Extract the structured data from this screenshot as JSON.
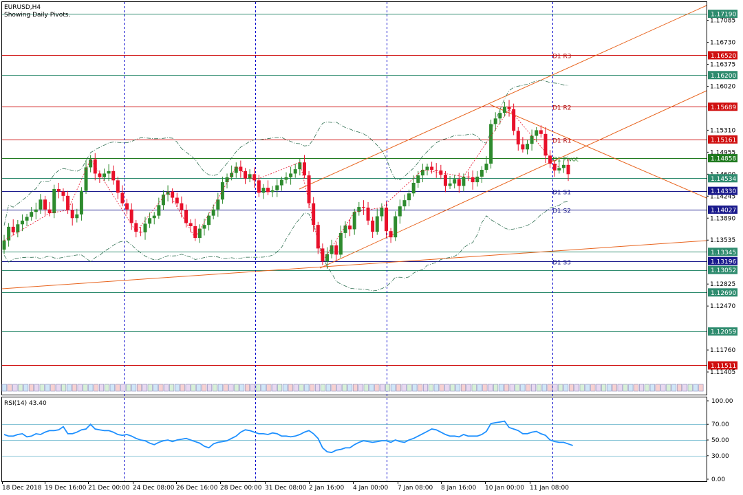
{
  "header": {
    "symbol": "EURUSD,H4",
    "subtitle": "Showing Daily Pivots."
  },
  "rsi": {
    "label": "RSI(14) 43.40"
  },
  "colors": {
    "bull": "#2e8b2e",
    "bear": "#e8102a",
    "rsi": "#1e90ff",
    "trend": "#e8641e",
    "session": "#0000cc",
    "pivot_red": "#d01010",
    "pivot_teal": "#2e8b6e",
    "pivot_navy": "#1a1a8c",
    "pivot_green": "#1f7a1f"
  },
  "chart_data": [
    {
      "type": "candlestick",
      "title": "EURUSD,H4",
      "subtitle": "Showing Daily Pivots.",
      "y_axis_ticks": [
        "1.17085",
        "1.16730",
        "1.16375",
        "1.16020",
        "1.15310",
        "1.14955",
        "1.14600",
        "1.14245",
        "1.13890",
        "1.13535",
        "1.12825",
        "1.12470",
        "1.11760",
        "1.11405"
      ],
      "ylim": [
        1.1125,
        1.1738
      ],
      "x_axis_ticks": [
        "18 Dec 2018",
        "19 Dec 16:00",
        "21 Dec 00:00",
        "24 Dec 08:00",
        "26 Dec 16:00",
        "28 Dec 00:00",
        "31 Dec 08:00",
        "2 Jan 16:00",
        "4 Jan 00:00",
        "7 Jan 08:00",
        "8 Jan 16:00",
        "10 Jan 00:00",
        "11 Jan 08:00"
      ],
      "price_levels": [
        {
          "value": "1.17190",
          "color": "teal"
        },
        {
          "value": "1.16520",
          "color": "red",
          "label": "D1 R3"
        },
        {
          "value": "1.16200",
          "color": "teal"
        },
        {
          "value": "1.15689",
          "color": "red",
          "label": "D1 R2"
        },
        {
          "value": "1.15161",
          "color": "red",
          "label": "D1 R1"
        },
        {
          "value": "1.14858",
          "color": "green",
          "label": "D1 Pivot"
        },
        {
          "value": "1.14534",
          "color": "teal"
        },
        {
          "value": "1.14330",
          "color": "navy",
          "label": "D1 S1"
        },
        {
          "value": "1.14027",
          "color": "navy",
          "label": "D1 S2"
        },
        {
          "value": "1.13345",
          "color": "teal"
        },
        {
          "value": "1.13196",
          "color": "navy",
          "label": "D1 S3"
        },
        {
          "value": "1.13052",
          "color": "teal"
        },
        {
          "value": "1.12690",
          "color": "teal"
        },
        {
          "value": "1.12059",
          "color": "teal"
        },
        {
          "value": "1.11511",
          "color": "red"
        }
      ],
      "closes": [
        1.1353,
        1.1375,
        1.1366,
        1.1379,
        1.1385,
        1.1391,
        1.1399,
        1.1403,
        1.1419,
        1.1403,
        1.1397,
        1.1436,
        1.1432,
        1.1425,
        1.1402,
        1.1389,
        1.1395,
        1.1433,
        1.1471,
        1.1484,
        1.1461,
        1.1455,
        1.1461,
        1.1465,
        1.145,
        1.143,
        1.1413,
        1.1403,
        1.1381,
        1.1367,
        1.1366,
        1.138,
        1.1389,
        1.1393,
        1.141,
        1.1427,
        1.1432,
        1.1422,
        1.1413,
        1.1402,
        1.1381,
        1.1376,
        1.1357,
        1.1372,
        1.1378,
        1.1393,
        1.1403,
        1.1419,
        1.1447,
        1.1455,
        1.1462,
        1.1472,
        1.1465,
        1.1453,
        1.146,
        1.145,
        1.143,
        1.1438,
        1.1431,
        1.1434,
        1.1442,
        1.1451,
        1.1455,
        1.1461,
        1.1468,
        1.1479,
        1.1458,
        1.1413,
        1.1378,
        1.134,
        1.1319,
        1.1331,
        1.1345,
        1.133,
        1.1365,
        1.1377,
        1.1371,
        1.1399,
        1.1407,
        1.1406,
        1.1385,
        1.1367,
        1.1392,
        1.1406,
        1.1368,
        1.1358,
        1.1392,
        1.1408,
        1.1418,
        1.1429,
        1.1446,
        1.1458,
        1.1467,
        1.1472,
        1.1467,
        1.1466,
        1.1459,
        1.1441,
        1.1445,
        1.1452,
        1.1441,
        1.1456,
        1.1455,
        1.1447,
        1.1456,
        1.1467,
        1.1477,
        1.1541,
        1.155,
        1.1559,
        1.1569,
        1.1565,
        1.153,
        1.1508,
        1.15,
        1.1509,
        1.1522,
        1.1531,
        1.1525,
        1.149,
        1.1477,
        1.1466,
        1.147,
        1.1475,
        1.146
      ],
      "rsi": {
        "name": "RSI(14)",
        "last": 43.4,
        "ticks": [
          "100.00",
          "70.00",
          "50.00",
          "30.00",
          "0.00"
        ],
        "levels": [
          70,
          50,
          30
        ],
        "values": [
          57,
          55,
          55,
          57,
          58,
          54,
          55,
          58,
          57,
          60,
          62,
          62,
          63,
          67,
          58,
          58,
          60,
          63,
          64,
          70,
          64,
          63,
          62,
          62,
          60,
          57,
          56,
          57,
          55,
          52,
          50,
          49,
          46,
          44,
          47,
          49,
          50,
          48,
          50,
          51,
          52,
          50,
          48,
          46,
          42,
          40,
          45,
          47,
          48,
          49,
          52,
          55,
          60,
          63,
          62,
          60,
          58,
          58,
          57,
          59,
          58,
          55,
          55,
          54,
          55,
          57,
          60,
          62,
          58,
          52,
          40,
          35,
          34,
          37,
          38,
          40,
          40,
          44,
          47,
          49,
          48,
          47,
          48,
          49,
          49,
          47,
          50,
          48,
          47,
          50,
          52,
          55,
          58,
          61,
          64,
          63,
          60,
          57,
          55,
          55,
          54,
          57,
          55,
          55,
          55,
          57,
          61,
          71,
          72,
          73,
          74,
          66,
          64,
          62,
          58,
          58,
          60,
          61,
          58,
          56,
          50,
          48,
          47,
          47,
          45,
          43
        ]
      }
    }
  ]
}
